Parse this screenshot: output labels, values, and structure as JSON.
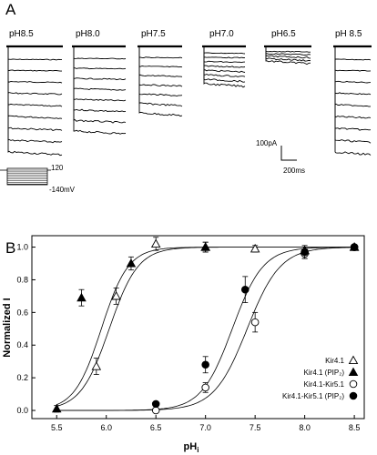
{
  "panel_a": {
    "label": "A",
    "conditions": [
      "pH8.5",
      "pH8.0",
      "pH7.5",
      "pH7.0",
      "pH6.5",
      "pH 8.5"
    ],
    "scale_current": "100pA",
    "scale_time": "200ms",
    "protocol": {
      "upper": "120",
      "lower": "-140mV"
    }
  },
  "chart_data": {
    "type": "scatter",
    "panel_label": "B",
    "title": "",
    "xlabel": "pH",
    "xlabel_subscript": "i",
    "ylabel": "Normalized I",
    "xlim": [
      5.25,
      8.6
    ],
    "ylim": [
      -0.05,
      1.07
    ],
    "x_ticks": [
      "5.5",
      "6.0",
      "6.5",
      "7.0",
      "7.5",
      "8.0",
      "8.5"
    ],
    "y_ticks": [
      "0.0",
      "0.2",
      "0.4",
      "0.6",
      "0.8",
      "1.0"
    ],
    "grid": false,
    "legend_position": "bottom-right",
    "series": [
      {
        "name": "Kir4.1",
        "marker": "triangle-open",
        "x": [
          5.9,
          6.1,
          6.5,
          7.0,
          7.5,
          8.0,
          8.5
        ],
        "y": [
          0.27,
          0.7,
          1.02,
          1.0,
          0.99,
          0.98,
          1.0
        ],
        "err": [
          0.05,
          0.05,
          0.04,
          0.03,
          0.02,
          0.02,
          0.01
        ]
      },
      {
        "name": "Kir4.1 (PIP₂)",
        "marker": "triangle-filled",
        "x": [
          5.5,
          5.75,
          6.25,
          7.0,
          8.0,
          8.5
        ],
        "y": [
          0.01,
          0.69,
          0.9,
          1.0,
          0.98,
          1.0
        ],
        "err": [
          0.02,
          0.05,
          0.04,
          0.03,
          0.02,
          0.01
        ]
      },
      {
        "name": "Kir4.1-Kir5.1",
        "marker": "circle-open",
        "x": [
          6.5,
          7.0,
          7.5,
          8.0,
          8.5
        ],
        "y": [
          0.0,
          0.14,
          0.54,
          0.96,
          1.0
        ],
        "err": [
          0.01,
          0.03,
          0.06,
          0.03,
          0.01
        ]
      },
      {
        "name": "Kir4.1-Kir5.1 (PIP₂)",
        "marker": "circle-filled",
        "x": [
          6.5,
          7.0,
          7.4,
          8.0,
          8.5
        ],
        "y": [
          0.04,
          0.28,
          0.74,
          0.97,
          1.0
        ],
        "err": [
          0.01,
          0.05,
          0.08,
          0.04,
          0.01
        ]
      }
    ],
    "fit_curves": [
      {
        "pKa": 5.95,
        "n": 3.2
      },
      {
        "pKa": 6.03,
        "n": 3.0
      },
      {
        "pKa": 7.27,
        "n": 2.8
      },
      {
        "pKa": 7.42,
        "n": 2.6
      }
    ]
  }
}
